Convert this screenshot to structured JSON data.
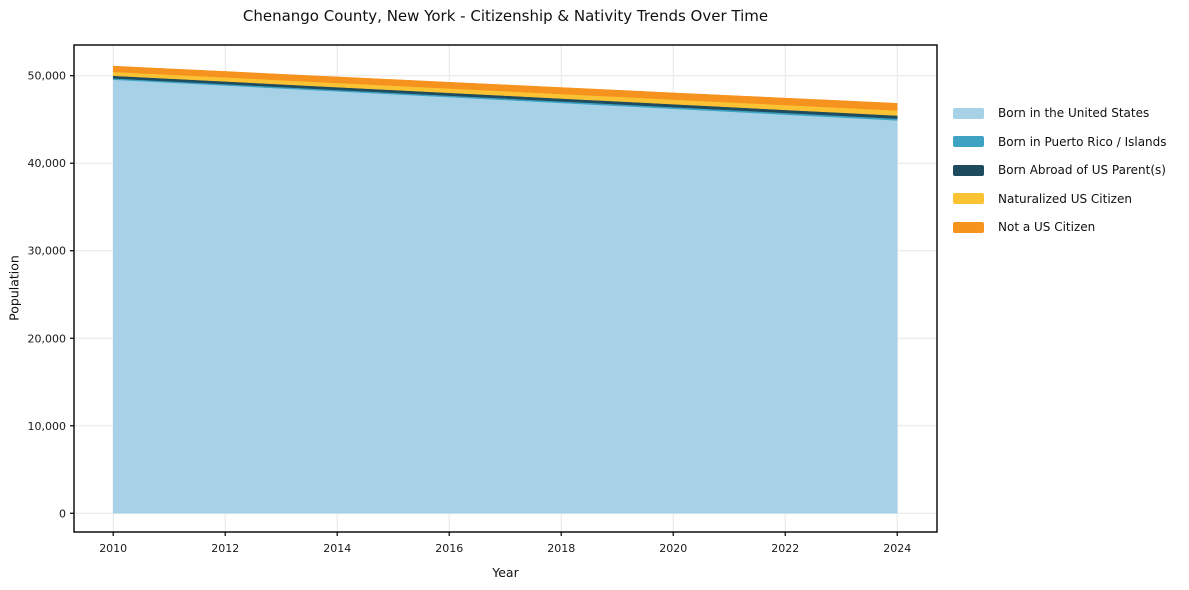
{
  "chart_data": {
    "type": "area",
    "stacked": true,
    "title": "Chenango County, New York - Citizenship & Nativity Trends Over Time",
    "xlabel": "Year",
    "ylabel": "Population",
    "grid": true,
    "legend_position": "right",
    "background_color": "#ffffff",
    "grid_color": "#e7e7e7",
    "spine_color": "#000000",
    "x": [
      2010,
      2011,
      2012,
      2013,
      2014,
      2015,
      2016,
      2017,
      2018,
      2019,
      2020,
      2021,
      2022,
      2023,
      2024
    ],
    "x_ticks": [
      2010,
      2012,
      2014,
      2016,
      2018,
      2020,
      2022,
      2024
    ],
    "x_tick_labels": [
      "2010",
      "2012",
      "2014",
      "2016",
      "2018",
      "2020",
      "2022",
      "2024"
    ],
    "y_ticks": [
      0,
      10000,
      20000,
      30000,
      40000,
      50000
    ],
    "y_tick_labels": [
      "0",
      "10,000",
      "20,000",
      "30,000",
      "40,000",
      "50,000"
    ],
    "xlim": [
      2009.3,
      2024.71
    ],
    "ylim": [
      -2140,
      53510
    ],
    "series": [
      {
        "name": "Born in the United States",
        "color": "#a6d1e6",
        "values": [
          49550,
          49220,
          48890,
          48550,
          48220,
          47890,
          47560,
          47230,
          46890,
          46560,
          46230,
          45900,
          45560,
          45230,
          44900
        ]
      },
      {
        "name": "Born in Puerto Rico / Islands",
        "color": "#3ea3c3",
        "values": [
          150,
          150,
          155,
          160,
          160,
          165,
          170,
          175,
          180,
          185,
          185,
          190,
          195,
          200,
          200
        ]
      },
      {
        "name": "Born Abroad of US Parent(s)",
        "color": "#1f4b5e",
        "values": [
          300,
          305,
          310,
          310,
          315,
          320,
          320,
          325,
          330,
          335,
          335,
          340,
          345,
          350,
          350
        ]
      },
      {
        "name": "Naturalized US Citizen",
        "color": "#fbc233",
        "values": [
          450,
          455,
          465,
          470,
          480,
          490,
          495,
          505,
          515,
          525,
          530,
          540,
          555,
          565,
          580
        ]
      },
      {
        "name": "Not a US Citizen",
        "color": "#f6921e",
        "values": [
          650,
          660,
          670,
          680,
          690,
          700,
          710,
          725,
          735,
          745,
          760,
          775,
          790,
          805,
          820
        ]
      }
    ]
  }
}
